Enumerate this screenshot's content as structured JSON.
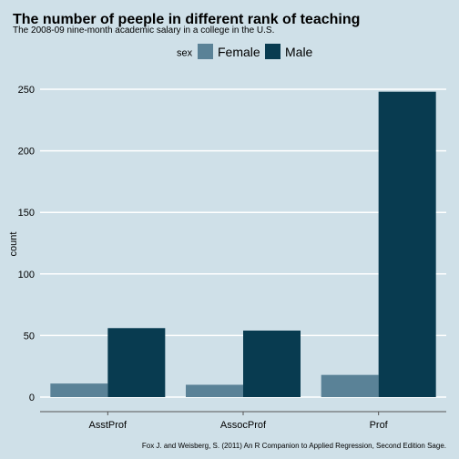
{
  "chart_data": {
    "type": "bar",
    "title": "The number of peeple in different rank of teaching",
    "subtitle": "The 2008-09 nine-month academic salary in a college in the U.S.",
    "caption": "Fox J. and Weisberg, S. (2011) An R Companion to Applied Regression, Second Edition Sage.",
    "xlabel": "",
    "ylabel": "count",
    "categories": [
      "AsstProf",
      "AssocProf",
      "Prof"
    ],
    "series": [
      {
        "name": "Female",
        "values": [
          11,
          10,
          18
        ]
      },
      {
        "name": "Male",
        "values": [
          56,
          54,
          248
        ]
      }
    ],
    "ylim": [
      0,
      250
    ],
    "yticks": [
      0,
      50,
      100,
      150,
      200,
      250
    ],
    "legend_title": "sex",
    "legend_position": "top",
    "grid": true,
    "colors": {
      "Female": "#5a8297",
      "Male": "#083b50",
      "background": "#cfe0e8",
      "grid": "#ffffff"
    }
  }
}
